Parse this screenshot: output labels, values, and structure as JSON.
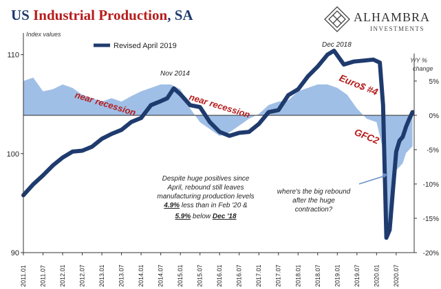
{
  "header": {
    "title_part1": "US ",
    "title_part2": "Industrial Production",
    "title_part3": ", SA",
    "title_colors": {
      "navy": "#1f3b6e",
      "red": "#b71c1c"
    }
  },
  "logo": {
    "name": "ALHAMBRA",
    "subtitle": "INVESTMENTS"
  },
  "chart_data": {
    "type": "line",
    "left_axis_label": "Index values",
    "right_axis_label_1": "Y/Y %",
    "right_axis_label_2": "change",
    "left_ticks": [
      90,
      100,
      110
    ],
    "left_ylim": [
      90,
      111.5
    ],
    "right_ticks": [
      "5%",
      "0%",
      "-5%",
      "-10%",
      "-15%",
      "-20%"
    ],
    "right_tick_values": [
      5,
      0,
      -5,
      -10,
      -15,
      -20
    ],
    "right_ylim": [
      -20,
      11
    ],
    "x_tick_labels": [
      "2011.01",
      "2011.07",
      "2012.01",
      "2012.07",
      "2013.01",
      "2013.07",
      "2014.01",
      "2014.07",
      "2015.01",
      "2015.07",
      "2016.01",
      "2016.07",
      "2017.01",
      "2017.07",
      "2018.01",
      "2018.07",
      "2019.01",
      "2019.07",
      "2020.01",
      "2020.07"
    ],
    "legend": [
      {
        "name": "Revised April 2019",
        "color": "#1f3b6e"
      }
    ],
    "series": [
      {
        "name": "Revised April 2019",
        "kind": "line",
        "color": "#1f3b6e",
        "x": [
          "2011-01",
          "2011-04",
          "2011-07",
          "2011-10",
          "2012-01",
          "2012-04",
          "2012-07",
          "2012-10",
          "2013-01",
          "2013-04",
          "2013-07",
          "2013-10",
          "2014-01",
          "2014-04",
          "2014-07",
          "2014-09",
          "2014-11",
          "2015-01",
          "2015-04",
          "2015-07",
          "2015-10",
          "2016-01",
          "2016-04",
          "2016-07",
          "2016-10",
          "2017-01",
          "2017-04",
          "2017-07",
          "2017-10",
          "2018-01",
          "2018-04",
          "2018-07",
          "2018-10",
          "2018-12",
          "2019-03",
          "2019-06",
          "2019-09",
          "2019-12",
          "2020-02",
          "2020-03",
          "2020-04",
          "2020-05",
          "2020-06",
          "2020-07",
          "2020-08",
          "2020-09",
          "2020-10",
          "2020-11",
          "2020-12"
        ],
        "values": [
          95.8,
          96.9,
          97.8,
          98.8,
          99.6,
          100.2,
          100.3,
          100.7,
          101.5,
          102.0,
          102.4,
          103.2,
          103.6,
          104.9,
          105.3,
          105.6,
          106.6,
          106.0,
          104.9,
          104.7,
          103.2,
          102.2,
          101.8,
          102.1,
          102.2,
          103.0,
          104.2,
          104.4,
          105.9,
          106.5,
          107.8,
          108.8,
          110.0,
          110.4,
          109.0,
          109.3,
          109.4,
          109.5,
          109.2,
          104.9,
          91.5,
          92.3,
          96.3,
          100.2,
          101.3,
          101.7,
          102.7,
          103.5,
          104.2
        ]
      },
      {
        "name": "Y/Y % change",
        "kind": "area",
        "color": "#8fb4e3",
        "x": [
          "2011-01",
          "2011-04",
          "2011-07",
          "2011-10",
          "2012-01",
          "2012-04",
          "2012-07",
          "2012-10",
          "2013-01",
          "2013-04",
          "2013-07",
          "2013-10",
          "2014-01",
          "2014-04",
          "2014-07",
          "2014-10",
          "2015-01",
          "2015-04",
          "2015-07",
          "2015-10",
          "2016-01",
          "2016-04",
          "2016-07",
          "2016-10",
          "2017-01",
          "2017-04",
          "2017-07",
          "2017-10",
          "2018-01",
          "2018-04",
          "2018-07",
          "2018-10",
          "2019-01",
          "2019-04",
          "2019-07",
          "2019-10",
          "2020-01",
          "2020-03",
          "2020-04",
          "2020-05",
          "2020-06",
          "2020-07",
          "2020-08",
          "2020-09",
          "2020-10",
          "2020-11",
          "2020-12"
        ],
        "values": [
          5.0,
          5.5,
          3.5,
          3.8,
          4.5,
          4.0,
          3.0,
          2.5,
          2.0,
          2.5,
          2.0,
          2.8,
          3.5,
          4.0,
          4.5,
          4.5,
          3.8,
          1.0,
          -1.0,
          -2.0,
          -3.0,
          -2.5,
          -1.5,
          -0.5,
          0.2,
          1.5,
          2.0,
          2.2,
          3.5,
          4.0,
          4.5,
          4.5,
          4.0,
          3.0,
          1.0,
          -0.5,
          -1.0,
          -5.0,
          -17.0,
          -16.0,
          -11.0,
          -8.0,
          -7.5,
          -7.0,
          -5.5,
          -5.0,
          -4.5
        ]
      }
    ],
    "annotations": {
      "nov2014": "Nov 2014",
      "dec2018": "Dec 2018",
      "near_recession_1": "near recession",
      "near_recession_2": "near recession",
      "euro": "Euro$ #4",
      "gfc": "GFC2",
      "despite_line1": "Despite huge positives since",
      "despite_line2": "April, rebound still leaves",
      "despite_line3": "manufacturing production levels",
      "despite_pct1": "4.9%",
      "despite_line4_rest": " less than in Feb '20 &",
      "despite_pct2": "5.9%",
      "despite_line5_mid": " below ",
      "despite_dec": "Dec '18",
      "where_line1": "where's the big rebound",
      "where_line2": "after the huge",
      "where_line3": "contraction?"
    },
    "colors": {
      "line": "#1f3b6e",
      "area": "#8fb4e3",
      "red_annotation": "#b71c1c",
      "arrow": "#6a8fc7"
    }
  }
}
